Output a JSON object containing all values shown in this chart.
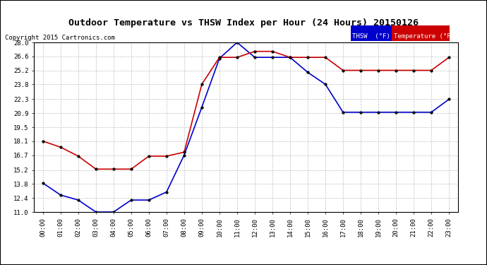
{
  "title": "Outdoor Temperature vs THSW Index per Hour (24 Hours) 20150126",
  "copyright": "Copyright 2015 Cartronics.com",
  "x_labels": [
    "00:00",
    "01:00",
    "02:00",
    "03:00",
    "04:00",
    "05:00",
    "06:00",
    "07:00",
    "08:00",
    "09:00",
    "10:00",
    "11:00",
    "12:00",
    "13:00",
    "14:00",
    "15:00",
    "16:00",
    "17:00",
    "18:00",
    "19:00",
    "20:00",
    "21:00",
    "22:00",
    "23:00"
  ],
  "thsw": [
    13.9,
    12.7,
    12.2,
    11.0,
    11.0,
    12.2,
    12.2,
    13.0,
    16.7,
    21.5,
    26.4,
    28.0,
    26.5,
    26.5,
    26.5,
    25.0,
    23.8,
    21.0,
    21.0,
    21.0,
    21.0,
    21.0,
    21.0,
    22.3
  ],
  "temperature": [
    18.1,
    17.5,
    16.6,
    15.3,
    15.3,
    15.3,
    16.6,
    16.6,
    17.0,
    23.8,
    26.5,
    26.5,
    27.1,
    27.1,
    26.5,
    26.5,
    26.5,
    25.2,
    25.2,
    25.2,
    25.2,
    25.2,
    25.2,
    26.5
  ],
  "thsw_color": "#0000cc",
  "temperature_color": "#cc0000",
  "ylim": [
    11.0,
    28.0
  ],
  "yticks": [
    11.0,
    12.4,
    13.8,
    15.2,
    16.7,
    18.1,
    19.5,
    20.9,
    22.3,
    23.8,
    25.2,
    26.6,
    28.0
  ],
  "bg_color": "#ffffff",
  "grid_color": "#c0c0c0",
  "legend_thsw_bg": "#0000cc",
  "legend_temp_bg": "#cc0000"
}
